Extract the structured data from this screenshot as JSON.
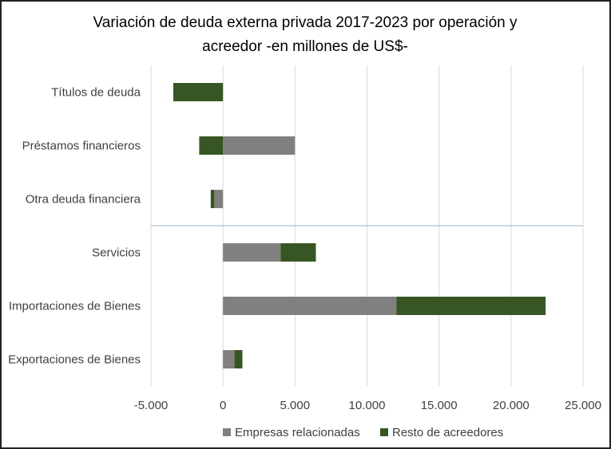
{
  "chart_data": {
    "type": "bar",
    "orientation": "horizontal",
    "stacked": true,
    "title_lines": [
      "Variación de deuda externa privada 2017-2023 por operación y",
      "acreedor -en millones de US$-"
    ],
    "categories": [
      "Títulos de deuda",
      "Préstamos financieros",
      "Otra deuda financiera",
      "Servicios",
      "Importaciones de Bienes",
      "Exportaciones de Bienes"
    ],
    "series": [
      {
        "name": "Empresas relacionadas",
        "color": "#808080",
        "values": [
          0,
          5000,
          -600,
          4000,
          12050,
          800
        ]
      },
      {
        "name": "Resto de acreedores",
        "color": "#375623",
        "values": [
          -3450,
          -1650,
          -250,
          2450,
          10350,
          550
        ]
      }
    ],
    "xlim": [
      -5000,
      25000
    ],
    "xticks": [
      -5000,
      0,
      5000,
      10000,
      15000,
      20000,
      25000
    ],
    "xtick_labels": [
      "-5.000",
      "0",
      "5.000",
      "10.000",
      "15.000",
      "20.000",
      "25.000"
    ],
    "grid": true,
    "legend": "bottom"
  }
}
